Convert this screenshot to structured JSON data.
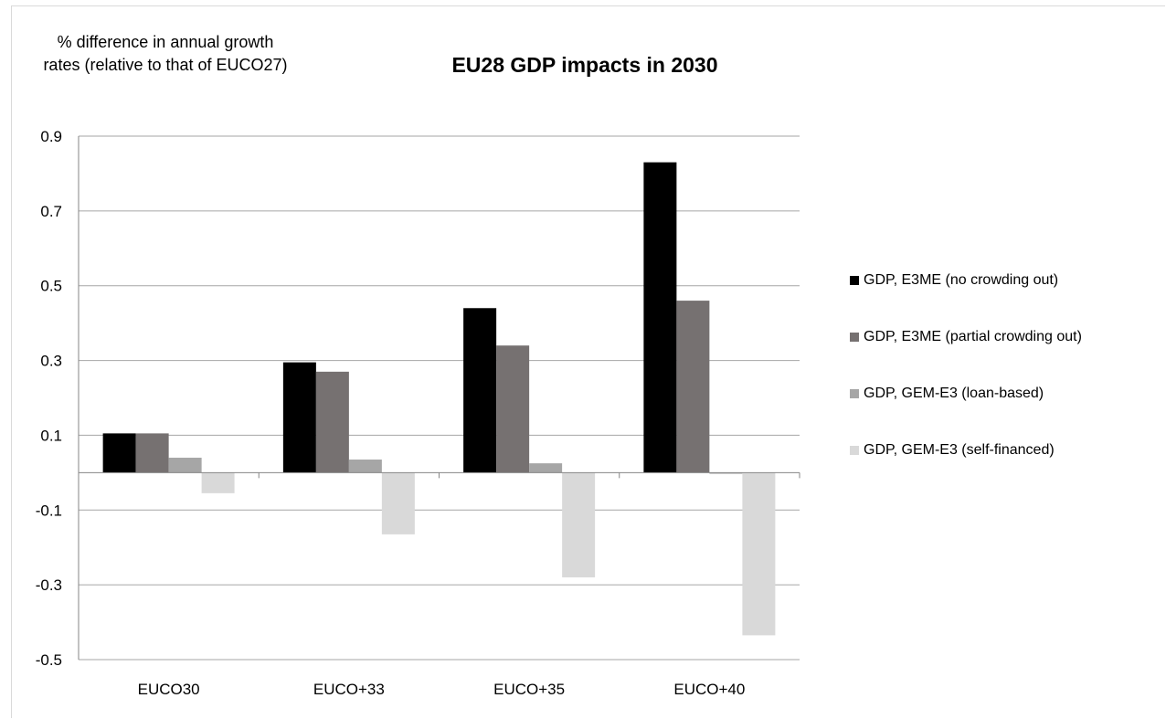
{
  "chart_data": {
    "type": "bar",
    "title": "EU28 GDP impacts in 2030",
    "ylabel": "% difference in annual growth rates (relative to that of  EUCO27)",
    "xlabel": "",
    "categories": [
      "EUCO30",
      "EUCO+33",
      "EUCO+35",
      "EUCO+40"
    ],
    "ylim": [
      -0.5,
      0.9
    ],
    "yticks": [
      0.9,
      0.7,
      0.5,
      0.3,
      0.1,
      -0.1,
      -0.3,
      -0.5
    ],
    "ytick_labels": [
      "0.9",
      "0.7",
      "0.5",
      "0.3",
      "0.1",
      "-0.1",
      "-0.3",
      "-0.5"
    ],
    "grid": true,
    "legend_position": "right",
    "series": [
      {
        "name": "GDP, E3ME (no crowding out)",
        "color": "#000000",
        "values": [
          0.105,
          0.295,
          0.44,
          0.83
        ]
      },
      {
        "name": "GDP, E3ME (partial crowding out)",
        "color": "#767171",
        "values": [
          0.105,
          0.27,
          0.34,
          0.46
        ]
      },
      {
        "name": "GDP, GEM-E3 (loan-based)",
        "color": "#a6a6a6",
        "values": [
          0.04,
          0.035,
          0.025,
          -0.003
        ]
      },
      {
        "name": "GDP, GEM-E3 (self-financed)",
        "color": "#d9d9d9",
        "values": [
          -0.055,
          -0.165,
          -0.28,
          -0.435
        ]
      }
    ]
  }
}
